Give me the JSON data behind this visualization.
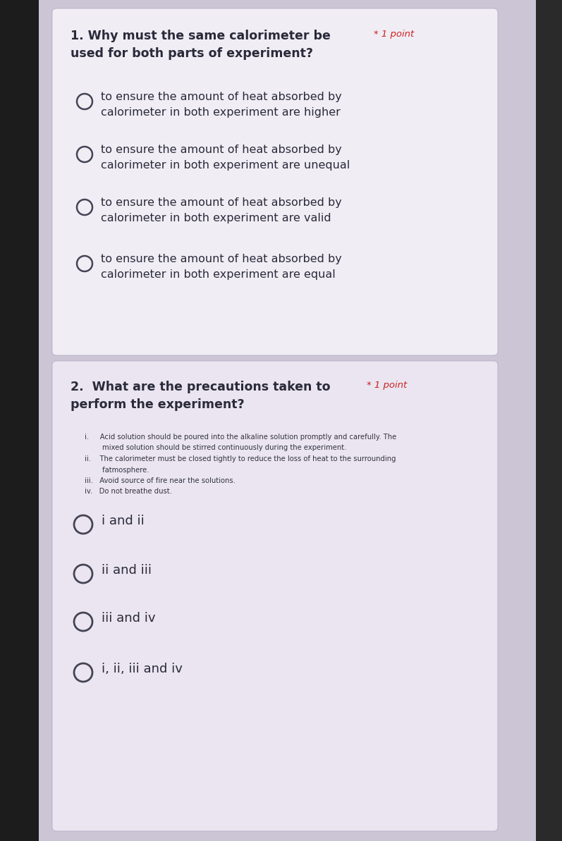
{
  "bg_outer": "#c8c0d0",
  "bg_left_edge": "#1a1a1a",
  "bg_card1": "#f0edf4",
  "bg_card2": "#eae5f0",
  "bg_overall": "#cbc5d5",
  "q1_number": "1.",
  "q1_text": "Why must the same calorimeter be",
  "q1_points": "* 1 point",
  "q1_text2": "used for both parts of experiment?",
  "q1_options": [
    "to ensure the amount of heat absorbed by\ncalorimeter in both experiment are higher",
    "to ensure the amount of heat absorbed by\ncalorimeter in both experiment are unequal",
    "to ensure the amount of heat absorbed by\ncalorimeter in both experiment are valid",
    "to ensure the amount of heat absorbed by\ncalorimeter in both experiment are equal"
  ],
  "q2_number": "2.",
  "q2_text": "What are the precautions taken to",
  "q2_points": "* 1 point",
  "q2_text2": "perform the experiment?",
  "q2_precautions_lines": [
    "i.     Acid solution should be poured into the alkaline solution promptly and carefully. The",
    "        mixed solution should be stirred continuously during the experiment.",
    "ii.    The calorimeter must be closed tightly to reduce the loss of heat to the surrounding",
    "        fatmosphere.",
    "iii.   Avoid source of fire near the solutions.",
    "iv.   Do not breathe dust."
  ],
  "q2_options": [
    "i and ii",
    "ii and iii",
    "iii and iv",
    "i, ii, iii and iv"
  ],
  "text_color": "#2a2a3a",
  "option_text_color": "#2a2a3a",
  "points_color": "#cc2222",
  "circle_edge": "#444455",
  "small_text_color": "#333344"
}
